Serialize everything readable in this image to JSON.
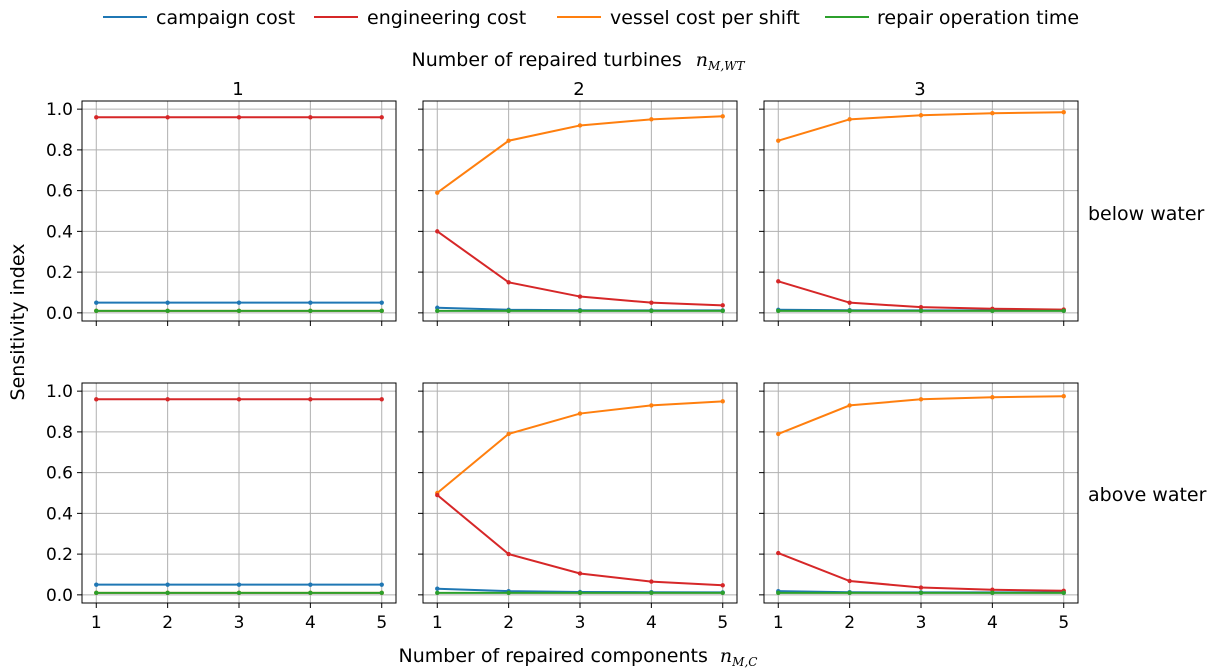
{
  "figure": {
    "top_title": "Number of repaired turbines",
    "top_title_symbol": "n",
    "top_title_subscript": "M,WT",
    "bottom_xlabel": "Number of repaired components",
    "bottom_xlabel_symbol": "n",
    "bottom_xlabel_subscript": "M,C",
    "ylabel": "Sensitivity index"
  },
  "legend": {
    "items": [
      {
        "label": "campaign cost",
        "color": "#1f77b4"
      },
      {
        "label": "engineering cost",
        "color": "#d62728"
      },
      {
        "label": "vessel cost per shift",
        "color": "#ff7f0e"
      },
      {
        "label": "repair operation time",
        "color": "#2ca02c"
      }
    ]
  },
  "chart_data": {
    "type": "line",
    "xlabel": "Number of repaired components n_M,C",
    "ylabel": "Sensitivity index",
    "x": [
      1,
      2,
      3,
      4,
      5
    ],
    "xlim": [
      0.8,
      5.2
    ],
    "ylim": [
      -0.04,
      1.04
    ],
    "yticks": [
      "0.0",
      "0.2",
      "0.4",
      "0.6",
      "0.8",
      "1.0"
    ],
    "xticks": [
      "1",
      "2",
      "3",
      "4",
      "5"
    ],
    "grid": true,
    "legend_position": "top",
    "column_titles": [
      "1",
      "2",
      "3"
    ],
    "row_titles": [
      "below water",
      "above water"
    ],
    "panels": [
      {
        "row": 0,
        "col": 0,
        "series": [
          {
            "name": "campaign cost",
            "values": [
              0.05,
              0.05,
              0.05,
              0.05,
              0.05
            ]
          },
          {
            "name": "engineering cost",
            "values": [
              0.96,
              0.96,
              0.96,
              0.96,
              0.96
            ]
          },
          {
            "name": "vessel cost per shift",
            "values": [
              0.01,
              0.01,
              0.01,
              0.01,
              0.01
            ]
          },
          {
            "name": "repair operation time",
            "values": [
              0.01,
              0.01,
              0.01,
              0.01,
              0.01
            ]
          }
        ]
      },
      {
        "row": 0,
        "col": 1,
        "series": [
          {
            "name": "campaign cost",
            "values": [
              0.025,
              0.015,
              0.013,
              0.012,
              0.012
            ]
          },
          {
            "name": "engineering cost",
            "values": [
              0.4,
              0.15,
              0.08,
              0.05,
              0.037
            ]
          },
          {
            "name": "vessel cost per shift",
            "values": [
              0.59,
              0.845,
              0.92,
              0.95,
              0.965
            ]
          },
          {
            "name": "repair operation time",
            "values": [
              0.01,
              0.01,
              0.01,
              0.01,
              0.01
            ]
          }
        ]
      },
      {
        "row": 0,
        "col": 2,
        "series": [
          {
            "name": "campaign cost",
            "values": [
              0.015,
              0.013,
              0.012,
              0.012,
              0.012
            ]
          },
          {
            "name": "engineering cost",
            "values": [
              0.155,
              0.05,
              0.028,
              0.02,
              0.016
            ]
          },
          {
            "name": "vessel cost per shift",
            "values": [
              0.845,
              0.95,
              0.97,
              0.98,
              0.985
            ]
          },
          {
            "name": "repair operation time",
            "values": [
              0.01,
              0.01,
              0.01,
              0.01,
              0.01
            ]
          }
        ]
      },
      {
        "row": 1,
        "col": 0,
        "series": [
          {
            "name": "campaign cost",
            "values": [
              0.05,
              0.05,
              0.05,
              0.05,
              0.05
            ]
          },
          {
            "name": "engineering cost",
            "values": [
              0.96,
              0.96,
              0.96,
              0.96,
              0.96
            ]
          },
          {
            "name": "vessel cost per shift",
            "values": [
              0.01,
              0.01,
              0.01,
              0.01,
              0.01
            ]
          },
          {
            "name": "repair operation time",
            "values": [
              0.01,
              0.01,
              0.01,
              0.01,
              0.01
            ]
          }
        ]
      },
      {
        "row": 1,
        "col": 1,
        "series": [
          {
            "name": "campaign cost",
            "values": [
              0.03,
              0.018,
              0.014,
              0.013,
              0.012
            ]
          },
          {
            "name": "engineering cost",
            "values": [
              0.49,
              0.2,
              0.105,
              0.065,
              0.047
            ]
          },
          {
            "name": "vessel cost per shift",
            "values": [
              0.5,
              0.79,
              0.89,
              0.93,
              0.95
            ]
          },
          {
            "name": "repair operation time",
            "values": [
              0.01,
              0.01,
              0.01,
              0.01,
              0.01
            ]
          }
        ]
      },
      {
        "row": 1,
        "col": 2,
        "series": [
          {
            "name": "campaign cost",
            "values": [
              0.018,
              0.013,
              0.012,
              0.012,
              0.012
            ]
          },
          {
            "name": "engineering cost",
            "values": [
              0.205,
              0.068,
              0.036,
              0.025,
              0.02
            ]
          },
          {
            "name": "vessel cost per shift",
            "values": [
              0.79,
              0.93,
              0.96,
              0.97,
              0.975
            ]
          },
          {
            "name": "repair operation time",
            "values": [
              0.01,
              0.01,
              0.01,
              0.01,
              0.01
            ]
          }
        ]
      }
    ]
  }
}
